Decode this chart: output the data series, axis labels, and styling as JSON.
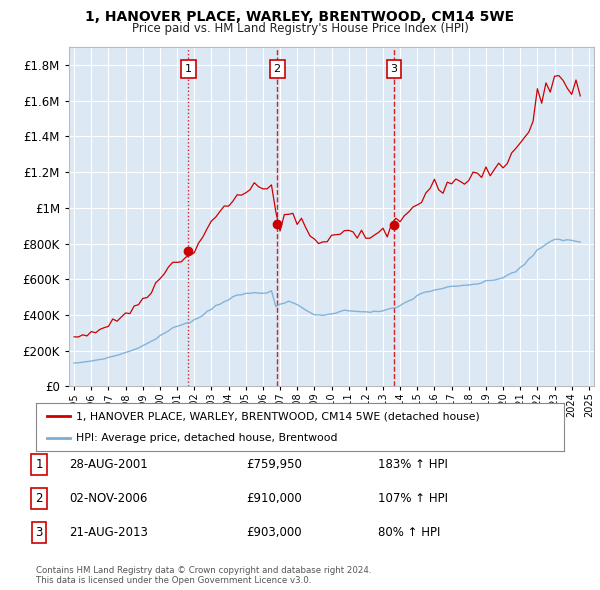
{
  "title": "1, HANOVER PLACE, WARLEY, BRENTWOOD, CM14 5WE",
  "subtitle": "Price paid vs. HM Land Registry's House Price Index (HPI)",
  "ylim": [
    0,
    1900000
  ],
  "xlim_start": 1994.7,
  "xlim_end": 2025.3,
  "background_color": "#dce9f5",
  "grid_color": "#ffffff",
  "red_color": "#cc0000",
  "blue_color": "#7aadd4",
  "sales": [
    {
      "num": 1,
      "year": 2001.65,
      "price": 759950,
      "line_style": "dotted"
    },
    {
      "num": 2,
      "year": 2006.83,
      "price": 910000,
      "line_style": "dashed"
    },
    {
      "num": 3,
      "year": 2013.64,
      "price": 903000,
      "line_style": "dashed"
    }
  ],
  "legend_label_red": "1, HANOVER PLACE, WARLEY, BRENTWOOD, CM14 5WE (detached house)",
  "legend_label_blue": "HPI: Average price, detached house, Brentwood",
  "footer1": "Contains HM Land Registry data © Crown copyright and database right 2024.",
  "footer2": "This data is licensed under the Open Government Licence v3.0.",
  "table_rows": [
    {
      "num": "1",
      "date": "28-AUG-2001",
      "price": "£759,950",
      "hpi": "183% ↑ HPI"
    },
    {
      "num": "2",
      "date": "02-NOV-2006",
      "price": "£910,000",
      "hpi": "107% ↑ HPI"
    },
    {
      "num": "3",
      "date": "21-AUG-2013",
      "price": "£903,000",
      "hpi": "80% ↑ HPI"
    }
  ],
  "yticks": [
    0,
    200000,
    400000,
    600000,
    800000,
    1000000,
    1200000,
    1400000,
    1600000,
    1800000
  ],
  "hpi_years": [
    1995.0,
    1995.25,
    1995.5,
    1995.75,
    1996.0,
    1996.25,
    1996.5,
    1996.75,
    1997.0,
    1997.25,
    1997.5,
    1997.75,
    1998.0,
    1998.25,
    1998.5,
    1998.75,
    1999.0,
    1999.25,
    1999.5,
    1999.75,
    2000.0,
    2000.25,
    2000.5,
    2000.75,
    2001.0,
    2001.25,
    2001.5,
    2001.75,
    2002.0,
    2002.25,
    2002.5,
    2002.75,
    2003.0,
    2003.25,
    2003.5,
    2003.75,
    2004.0,
    2004.25,
    2004.5,
    2004.75,
    2005.0,
    2005.25,
    2005.5,
    2005.75,
    2006.0,
    2006.25,
    2006.5,
    2006.75,
    2007.0,
    2007.25,
    2007.5,
    2007.75,
    2008.0,
    2008.25,
    2008.5,
    2008.75,
    2009.0,
    2009.25,
    2009.5,
    2009.75,
    2010.0,
    2010.25,
    2010.5,
    2010.75,
    2011.0,
    2011.25,
    2011.5,
    2011.75,
    2012.0,
    2012.25,
    2012.5,
    2012.75,
    2013.0,
    2013.25,
    2013.5,
    2013.75,
    2014.0,
    2014.25,
    2014.5,
    2014.75,
    2015.0,
    2015.25,
    2015.5,
    2015.75,
    2016.0,
    2016.25,
    2016.5,
    2016.75,
    2017.0,
    2017.25,
    2017.5,
    2017.75,
    2018.0,
    2018.25,
    2018.5,
    2018.75,
    2019.0,
    2019.25,
    2019.5,
    2019.75,
    2020.0,
    2020.25,
    2020.5,
    2020.75,
    2021.0,
    2021.25,
    2021.5,
    2021.75,
    2022.0,
    2022.25,
    2022.5,
    2022.75,
    2023.0,
    2023.25,
    2023.5,
    2023.75,
    2024.0,
    2024.25,
    2024.5
  ],
  "hpi_vals": [
    130000,
    133000,
    136000,
    139000,
    143000,
    147000,
    151000,
    156000,
    162000,
    168000,
    175000,
    182000,
    190000,
    198000,
    207000,
    217000,
    228000,
    240000,
    253000,
    267000,
    282000,
    297000,
    312000,
    325000,
    337000,
    347000,
    355000,
    362000,
    372000,
    385000,
    400000,
    418000,
    436000,
    452000,
    466000,
    477000,
    488000,
    498000,
    507000,
    514000,
    519000,
    522000,
    524000,
    525000,
    527000,
    530000,
    535000,
    442000,
    460000,
    468000,
    472000,
    468000,
    458000,
    443000,
    428000,
    415000,
    405000,
    400000,
    398000,
    400000,
    408000,
    415000,
    420000,
    423000,
    425000,
    424000,
    423000,
    421000,
    419000,
    418000,
    418000,
    420000,
    423000,
    428000,
    434000,
    441000,
    452000,
    466000,
    480000,
    494000,
    508000,
    519000,
    528000,
    535000,
    541000,
    546000,
    550000,
    553000,
    556000,
    559000,
    562000,
    565000,
    568000,
    572000,
    576000,
    580000,
    585000,
    591000,
    597000,
    604000,
    612000,
    622000,
    634000,
    648000,
    665000,
    685000,
    708000,
    733000,
    758000,
    780000,
    798000,
    810000,
    818000,
    822000,
    823000,
    821000,
    818000,
    815000,
    812000
  ]
}
